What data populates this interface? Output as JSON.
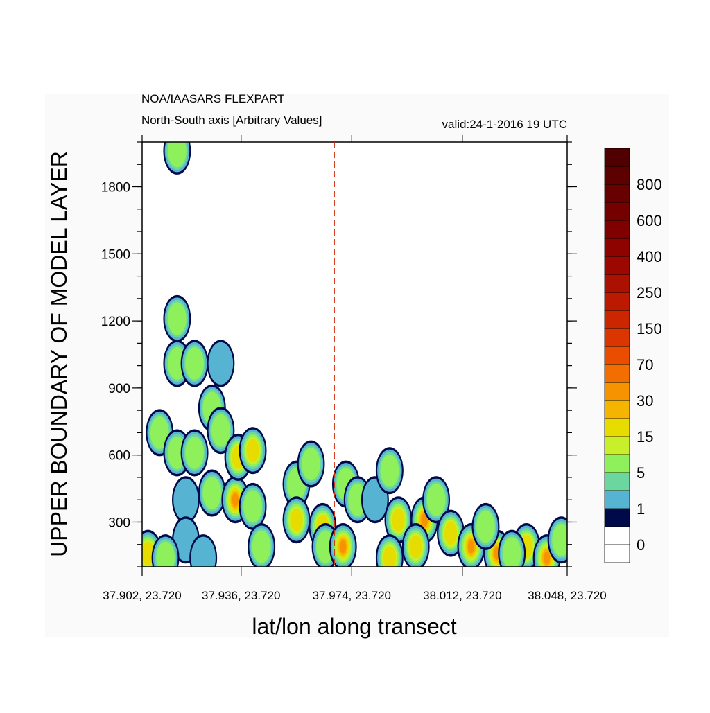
{
  "chart_data": {
    "type": "contour",
    "title": "NOA/IAASARS FLEXPART",
    "subtitle": "North-South axis [Arbitrary Values]",
    "valid_time": "valid:24-1-2016 19 UTC",
    "x_label": "lat/lon along transect",
    "y_label": "UPPER BOUNDARY OF MODEL LAYER",
    "xlim": [
      37.902,
      38.048
    ],
    "xticks": [
      {
        "value": 37.902,
        "label": "37.902, 23.720"
      },
      {
        "value": 37.936,
        "label": "37.936, 23.720"
      },
      {
        "value": 37.974,
        "label": "37.974, 23.720"
      },
      {
        "value": 38.012,
        "label": "38.012, 23.720"
      },
      {
        "value": 38.048,
        "label": "38.048, 23.720"
      }
    ],
    "ylim": [
      100,
      2000
    ],
    "yticks": [
      300,
      600,
      900,
      1200,
      1500,
      1800
    ],
    "marker_x": 37.968,
    "marker_color": "#d03010",
    "colorbar": {
      "colors": [
        "#ffffff",
        "#ffffff",
        "#000a4a",
        "#56b4d2",
        "#6cd6a0",
        "#8ef05a",
        "#c8f02a",
        "#e6dc00",
        "#f5b400",
        "#f59400",
        "#f26e00",
        "#ea4c00",
        "#dc3600",
        "#cc2600",
        "#bc1a00",
        "#ac1000",
        "#9c0800",
        "#8e0200",
        "#800000",
        "#740000",
        "#680000",
        "#5c0000",
        "#500000"
      ],
      "levels": [
        0,
        null,
        1,
        null,
        5,
        null,
        15,
        null,
        30,
        null,
        70,
        null,
        150,
        null,
        250,
        null,
        400,
        null,
        600,
        null,
        800,
        null
      ]
    },
    "x": [
      37.914,
      37.914,
      37.914,
      37.92,
      37.929,
      37.926,
      37.929,
      37.908,
      37.914,
      37.92,
      37.917,
      37.917,
      37.923,
      37.904,
      37.91,
      37.926,
      37.934,
      37.935,
      37.94,
      37.94,
      37.943,
      37.955,
      37.955,
      37.96,
      37.964,
      37.965,
      37.972,
      37.976,
      37.971,
      37.982,
      37.987,
      37.99,
      37.999,
      37.996,
      38.003,
      38.008,
      38.015,
      38.024,
      38.02,
      38.034,
      38.041,
      38.046,
      37.987,
      38.029
    ],
    "y": [
      1960,
      1210,
      1010,
      1010,
      1010,
      810,
      710,
      700,
      610,
      610,
      400,
      220,
      140,
      160,
      140,
      430,
      400,
      590,
      620,
      370,
      190,
      470,
      310,
      560,
      280,
      190,
      470,
      400,
      190,
      400,
      530,
      310,
      310,
      190,
      400,
      250,
      190,
      160,
      280,
      190,
      140,
      220,
      140,
      160
    ],
    "values": [
      5,
      5,
      5,
      5,
      1,
      5,
      5,
      5,
      5,
      5,
      1,
      1,
      1,
      15,
      5,
      5,
      30,
      15,
      15,
      5,
      5,
      5,
      15,
      5,
      15,
      5,
      5,
      5,
      30,
      1,
      5,
      15,
      30,
      15,
      5,
      15,
      30,
      30,
      5,
      15,
      30,
      5,
      15,
      5
    ]
  }
}
